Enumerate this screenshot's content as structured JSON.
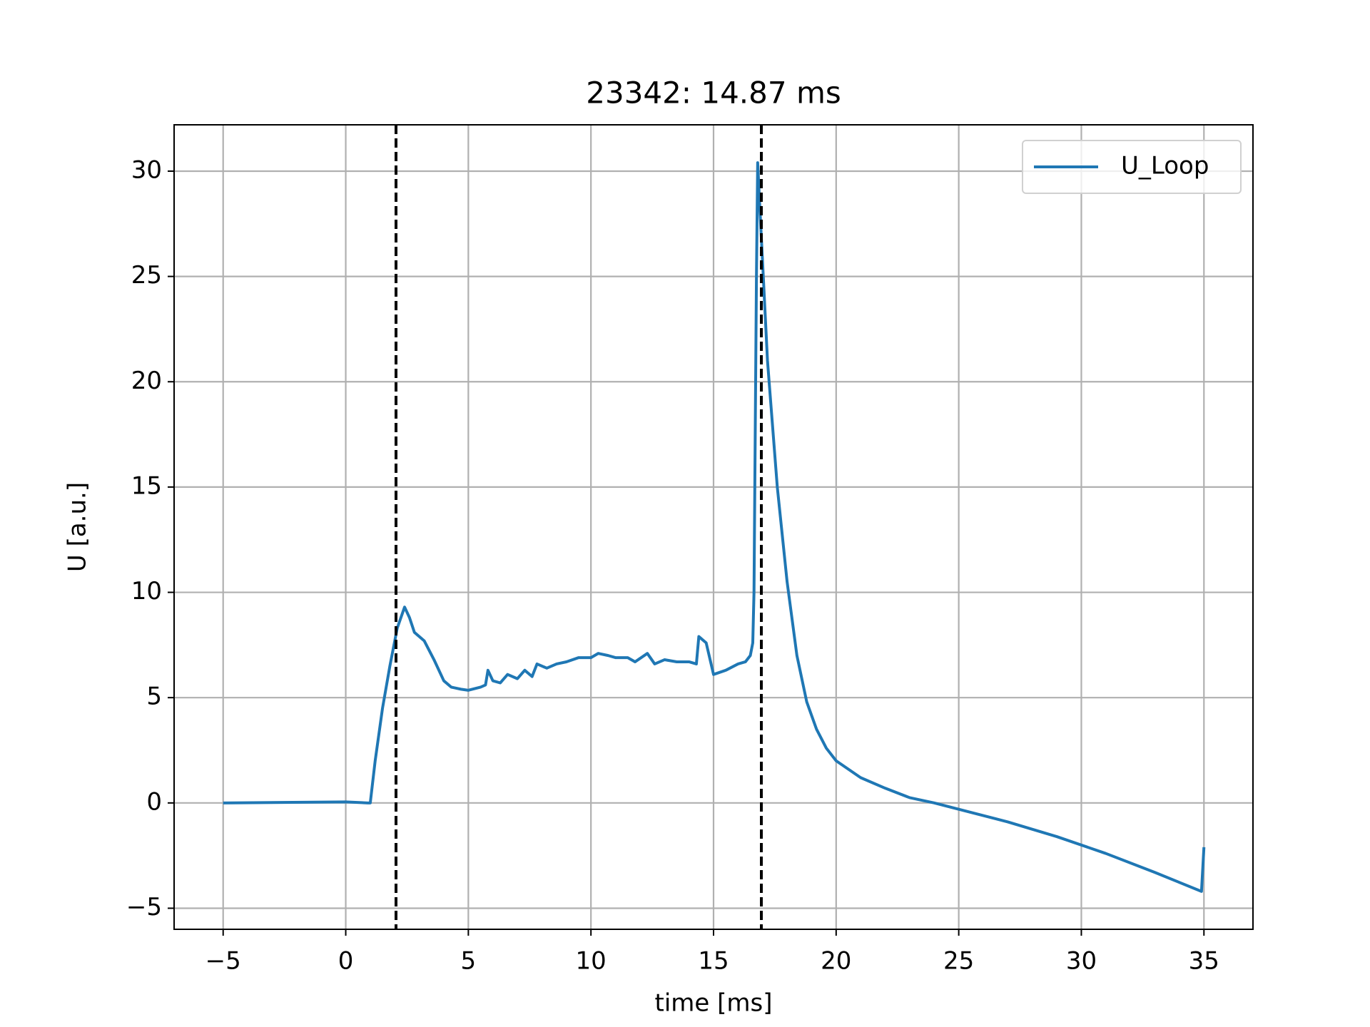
{
  "chart_data": {
    "type": "line",
    "title": "23342: 14.87 ms",
    "xlabel": "time [ms]",
    "ylabel": "U [a.u.]",
    "x": [
      -5,
      0,
      0.9,
      1.0,
      1.2,
      1.5,
      1.8,
      2.1,
      2.4,
      2.6,
      2.8,
      3.2,
      3.6,
      4.0,
      4.3,
      4.7,
      5.0,
      5.5,
      5.7,
      5.8,
      6.0,
      6.3,
      6.6,
      7.0,
      7.3,
      7.6,
      7.8,
      8.2,
      8.6,
      9.0,
      9.5,
      10.0,
      10.3,
      10.7,
      11.0,
      11.5,
      11.8,
      12.3,
      12.6,
      13.0,
      13.5,
      14.0,
      14.3,
      14.4,
      14.7,
      15.0,
      15.5,
      16.0,
      16.3,
      16.5,
      16.6,
      16.65,
      16.75,
      16.8,
      16.9,
      17.2,
      17.6,
      18.0,
      18.4,
      18.8,
      19.2,
      19.6,
      20.0,
      21.0,
      22.0,
      23.0,
      24.0,
      25.0,
      27.0,
      29.0,
      31.0,
      33.0,
      34.9,
      35.0
    ],
    "series": [
      {
        "name": "U_Loop",
        "color": "#1f77b4",
        "values": [
          0,
          0.05,
          0,
          0,
          2,
          4.5,
          6.5,
          8.3,
          9.3,
          8.8,
          8.1,
          7.7,
          6.8,
          5.8,
          5.5,
          5.4,
          5.35,
          5.5,
          5.6,
          6.3,
          5.8,
          5.7,
          6.1,
          5.9,
          6.3,
          6.0,
          6.6,
          6.4,
          6.6,
          6.7,
          6.9,
          6.9,
          7.1,
          7.0,
          6.9,
          6.9,
          6.7,
          7.1,
          6.6,
          6.8,
          6.7,
          6.7,
          6.6,
          7.9,
          7.6,
          6.1,
          6.3,
          6.6,
          6.7,
          7.0,
          7.6,
          10,
          25,
          30.4,
          28,
          21,
          15,
          10.5,
          7,
          4.8,
          3.5,
          2.6,
          2.0,
          1.2,
          0.7,
          0.25,
          0,
          -0.3,
          -0.9,
          -1.6,
          -2.4,
          -3.3,
          -4.2,
          -2.1
        ]
      }
    ],
    "vlines": [
      2.05,
      16.95
    ],
    "vline_color": "#000000",
    "xlim": [
      -7,
      37
    ],
    "ylim": [
      -6,
      32.2
    ],
    "xticks": [
      {
        "value": -5,
        "label": "−5"
      },
      0,
      5,
      10,
      15,
      20,
      25,
      30,
      35
    ],
    "yticks": [
      {
        "value": -5,
        "label": "−5"
      },
      0,
      5,
      10,
      15,
      20,
      25,
      30
    ],
    "grid": true,
    "legend": "upper right"
  }
}
